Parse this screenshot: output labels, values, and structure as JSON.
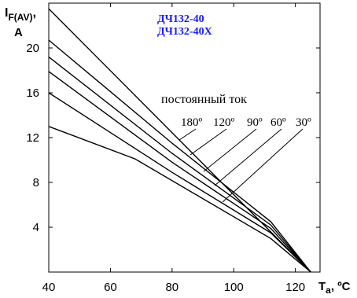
{
  "chart_data": {
    "type": "line",
    "title": [
      "ДЧ132-40",
      "ДЧ132-40Х"
    ],
    "ylabel": {
      "main": "I",
      "sub": "F(AV)",
      "suffix": ",",
      "second_line": "A"
    },
    "xlabel": {
      "main": "T",
      "sub": "a",
      "suffix": ", ºC"
    },
    "xlim": [
      40,
      128
    ],
    "ylim": [
      0,
      24
    ],
    "x_ticks": [
      40,
      60,
      80,
      100,
      120
    ],
    "y_ticks": [
      4,
      8,
      12,
      16,
      20
    ],
    "curve_group_label": "постоянный ток",
    "series": [
      {
        "name": "постоянный ток",
        "x": [
          40,
          125
        ],
        "y": [
          23.5,
          0
        ]
      },
      {
        "name": "180º",
        "x": [
          40,
          80,
          112,
          125
        ],
        "y": [
          20.7,
          11.5,
          4.5,
          0
        ]
      },
      {
        "name": "120º",
        "x": [
          40,
          80,
          112,
          125
        ],
        "y": [
          19.2,
          10.6,
          4.2,
          0
        ]
      },
      {
        "name": "90º",
        "x": [
          40,
          80,
          112,
          125
        ],
        "y": [
          17.9,
          9.8,
          3.9,
          0
        ]
      },
      {
        "name": "60º",
        "x": [
          40,
          80,
          112,
          125
        ],
        "y": [
          16.0,
          8.9,
          3.5,
          0
        ]
      },
      {
        "name": "30º",
        "x": [
          40,
          68,
          112,
          125
        ],
        "y": [
          13.0,
          10.1,
          3.0,
          0
        ]
      }
    ],
    "grid": false,
    "legend": "annotations"
  }
}
